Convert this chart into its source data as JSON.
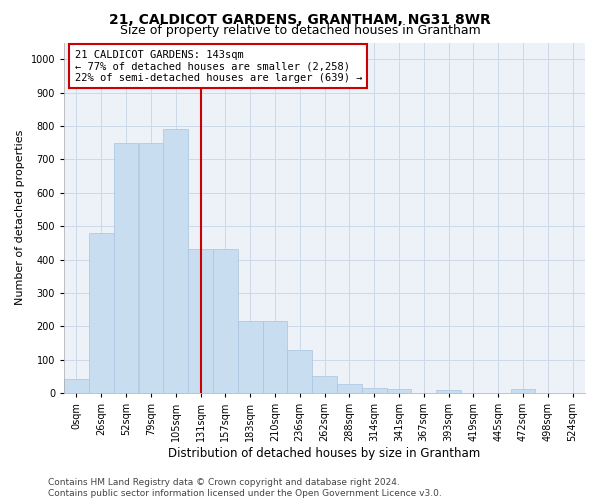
{
  "title": "21, CALDICOT GARDENS, GRANTHAM, NG31 8WR",
  "subtitle": "Size of property relative to detached houses in Grantham",
  "xlabel": "Distribution of detached houses by size in Grantham",
  "ylabel": "Number of detached properties",
  "bar_color": "#c8ddef",
  "bar_edge_color": "#a8c4de",
  "bin_labels": [
    "0sqm",
    "26sqm",
    "52sqm",
    "79sqm",
    "105sqm",
    "131sqm",
    "157sqm",
    "183sqm",
    "210sqm",
    "236sqm",
    "262sqm",
    "288sqm",
    "314sqm",
    "341sqm",
    "367sqm",
    "393sqm",
    "419sqm",
    "445sqm",
    "472sqm",
    "498sqm",
    "524sqm"
  ],
  "bar_heights": [
    42,
    480,
    750,
    750,
    790,
    430,
    430,
    215,
    215,
    130,
    50,
    27,
    15,
    12,
    0,
    8,
    0,
    0,
    12,
    0,
    0
  ],
  "ylim": [
    0,
    1050
  ],
  "yticks": [
    0,
    100,
    200,
    300,
    400,
    500,
    600,
    700,
    800,
    900,
    1000
  ],
  "property_line_bin": 5.5,
  "annotation_text": "21 CALDICOT GARDENS: 143sqm\n← 77% of detached houses are smaller (2,258)\n22% of semi-detached houses are larger (639) →",
  "annotation_box_color": "#ffffff",
  "annotation_box_edge": "#cc0000",
  "vline_color": "#cc0000",
  "grid_color": "#ccd8e8",
  "background_color": "#edf2f9",
  "footer_text": "Contains HM Land Registry data © Crown copyright and database right 2024.\nContains public sector information licensed under the Open Government Licence v3.0.",
  "title_fontsize": 10,
  "subtitle_fontsize": 9,
  "xlabel_fontsize": 8.5,
  "ylabel_fontsize": 8,
  "tick_fontsize": 7,
  "annotation_fontsize": 7.5,
  "footer_fontsize": 6.5
}
